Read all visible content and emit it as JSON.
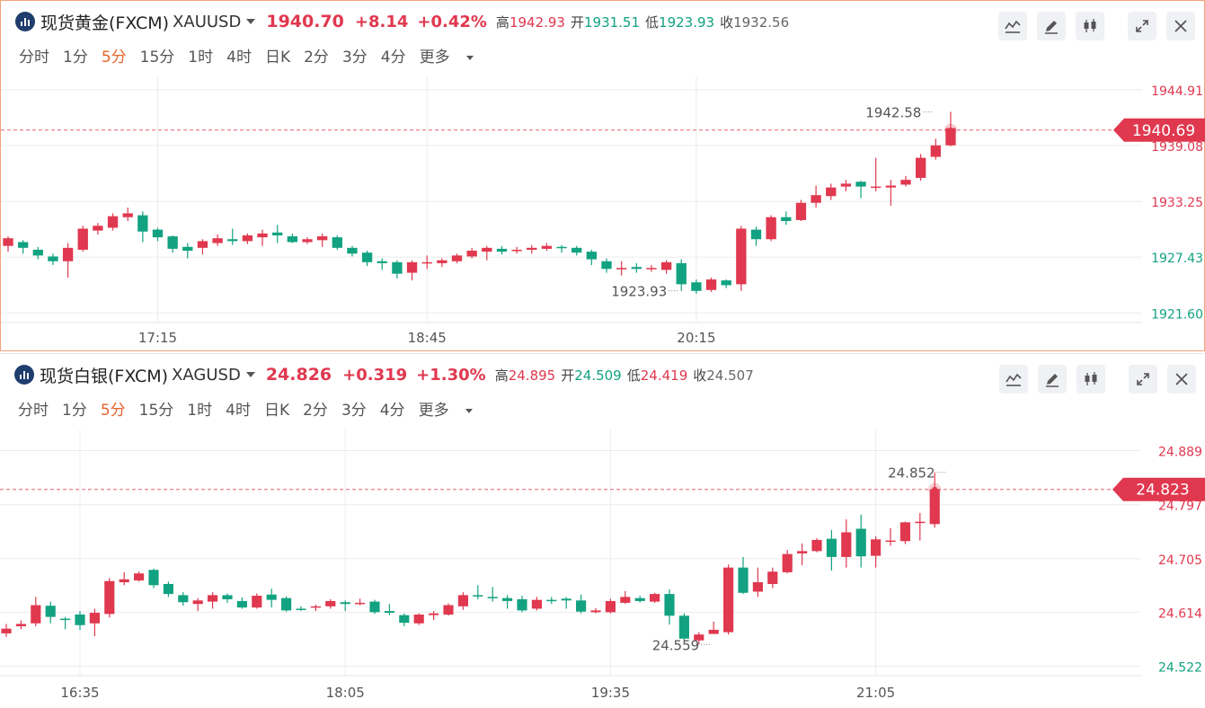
{
  "colors": {
    "up": "#e0384f",
    "down": "#12a281",
    "accent": "#e8622a",
    "grid": "#ececec"
  },
  "icons": [
    "line-style-icon",
    "pencil-icon",
    "candlestick-icon",
    "expand-icon",
    "close-icon"
  ],
  "periods": [
    "分时",
    "1分",
    "5分",
    "15分",
    "1时",
    "4时",
    "日K",
    "2分",
    "3分",
    "4分"
  ],
  "more_label": "更多",
  "active_period": "5分",
  "panels": [
    {
      "name": "现货黄金(FXCM)",
      "code": "XAUUSD",
      "price": "1940.70",
      "change": "+8.14",
      "change_pct": "+0.42%",
      "high_label": "高",
      "high": "1942.93",
      "open_label": "开",
      "open": "1931.51",
      "low_label": "低",
      "low": "1923.93",
      "close_label": "收",
      "close": "1932.56"
    },
    {
      "name": "现货白银(FXCM)",
      "code": "XAGUSD",
      "price": "24.826",
      "change": "+0.319",
      "change_pct": "+1.30%",
      "high_label": "高",
      "high": "24.895",
      "open_label": "开",
      "open": "24.509",
      "low_label": "低",
      "low": "24.419",
      "close_label": "收",
      "close": "24.507"
    }
  ],
  "chart_data": [
    {
      "type": "candlestick",
      "title": "现货黄金(FXCM) XAUUSD 5分",
      "interval": "5分",
      "x_ticks": [
        "17:15",
        "18:45",
        "20:15"
      ],
      "x_tick_index": [
        10,
        28,
        46
      ],
      "y_ticks": [
        1944.91,
        1939.08,
        1933.25,
        1927.43,
        1921.6
      ],
      "ylim": [
        1920.6,
        1946.3
      ],
      "last_price": "1940.69",
      "max_label": "1942.58",
      "min_label": "1923.93",
      "max_index": 62,
      "min_index": 45,
      "candles": [
        [
          1928.6,
          1929.4,
          1928.0,
          1929.6
        ],
        [
          1929.0,
          1928.4,
          1927.8,
          1929.2
        ],
        [
          1928.2,
          1927.6,
          1927.2,
          1928.5
        ],
        [
          1927.5,
          1927.0,
          1926.6,
          1927.8
        ],
        [
          1927.0,
          1928.4,
          1925.3,
          1928.9
        ],
        [
          1928.2,
          1930.4,
          1928.0,
          1930.7
        ],
        [
          1930.2,
          1930.7,
          1929.8,
          1931.0
        ],
        [
          1930.5,
          1931.7,
          1930.2,
          1932.0
        ],
        [
          1931.6,
          1932.0,
          1931.2,
          1932.6
        ],
        [
          1931.8,
          1930.1,
          1929.0,
          1932.2
        ],
        [
          1930.3,
          1929.5,
          1929.1,
          1930.5
        ],
        [
          1929.6,
          1928.3,
          1927.9,
          1929.7
        ],
        [
          1928.5,
          1928.1,
          1927.3,
          1928.9
        ],
        [
          1928.4,
          1929.1,
          1927.7,
          1929.3
        ],
        [
          1928.9,
          1929.4,
          1928.6,
          1929.8
        ],
        [
          1929.3,
          1929.1,
          1928.7,
          1930.4
        ],
        [
          1929.1,
          1929.7,
          1928.8,
          1929.9
        ],
        [
          1929.5,
          1929.9,
          1928.6,
          1930.3
        ],
        [
          1930.0,
          1929.7,
          1928.9,
          1930.8
        ],
        [
          1929.6,
          1929.0,
          1928.9,
          1929.9
        ],
        [
          1929.0,
          1929.3,
          1928.8,
          1929.5
        ],
        [
          1929.2,
          1929.6,
          1928.5,
          1929.9
        ],
        [
          1929.5,
          1928.4,
          1928.2,
          1929.7
        ],
        [
          1928.4,
          1927.8,
          1927.5,
          1928.6
        ],
        [
          1927.9,
          1926.9,
          1926.5,
          1928.1
        ],
        [
          1927.0,
          1926.8,
          1926.1,
          1927.3
        ],
        [
          1926.9,
          1925.7,
          1925.2,
          1927.1
        ],
        [
          1925.8,
          1926.9,
          1925.0,
          1927.1
        ],
        [
          1926.8,
          1926.9,
          1926.2,
          1927.6
        ],
        [
          1926.8,
          1927.1,
          1926.4,
          1927.3
        ],
        [
          1927.0,
          1927.6,
          1926.8,
          1927.8
        ],
        [
          1927.5,
          1928.1,
          1927.3,
          1928.4
        ],
        [
          1928.0,
          1928.4,
          1927.1,
          1928.6
        ],
        [
          1928.3,
          1928.0,
          1927.7,
          1928.6
        ],
        [
          1928.1,
          1928.2,
          1927.8,
          1928.5
        ],
        [
          1928.2,
          1928.4,
          1927.8,
          1928.7
        ],
        [
          1928.3,
          1928.6,
          1928.1,
          1928.9
        ],
        [
          1928.5,
          1928.4,
          1927.9,
          1928.7
        ],
        [
          1928.4,
          1927.9,
          1927.6,
          1928.6
        ],
        [
          1928.0,
          1927.2,
          1926.6,
          1928.2
        ],
        [
          1927.0,
          1926.2,
          1925.8,
          1927.3
        ],
        [
          1926.3,
          1926.3,
          1925.5,
          1927.0
        ],
        [
          1926.4,
          1926.2,
          1925.8,
          1926.8
        ],
        [
          1926.2,
          1926.3,
          1925.9,
          1926.6
        ],
        [
          1926.1,
          1926.9,
          1925.7,
          1927.1
        ],
        [
          1926.8,
          1924.6,
          1923.9,
          1927.2
        ],
        [
          1924.8,
          1923.9,
          1923.6,
          1925.1
        ],
        [
          1924.0,
          1925.1,
          1923.8,
          1925.3
        ],
        [
          1925.0,
          1924.5,
          1924.2,
          1925.1
        ],
        [
          1924.6,
          1930.4,
          1923.9,
          1930.7
        ],
        [
          1930.3,
          1929.3,
          1928.6,
          1930.6
        ],
        [
          1929.3,
          1931.6,
          1929.1,
          1931.8
        ],
        [
          1931.6,
          1931.2,
          1930.8,
          1932.2
        ],
        [
          1931.3,
          1933.1,
          1931.2,
          1933.4
        ],
        [
          1933.1,
          1933.9,
          1932.6,
          1934.9
        ],
        [
          1933.8,
          1934.7,
          1933.4,
          1935.1
        ],
        [
          1934.8,
          1935.1,
          1934.3,
          1935.5
        ],
        [
          1935.3,
          1934.8,
          1933.6,
          1935.4
        ],
        [
          1934.8,
          1934.8,
          1934.3,
          1937.8
        ],
        [
          1934.7,
          1934.9,
          1932.8,
          1935.5
        ],
        [
          1935.0,
          1935.5,
          1934.8,
          1935.9
        ],
        [
          1935.7,
          1937.8,
          1935.4,
          1938.2
        ],
        [
          1937.9,
          1939.1,
          1937.6,
          1939.8
        ],
        [
          1939.1,
          1940.9,
          1939.0,
          1942.6
        ]
      ]
    },
    {
      "type": "candlestick",
      "title": "现货白银(FXCM) XAGUSD 5分",
      "interval": "5分",
      "x_ticks": [
        "16:35",
        "18:05",
        "19:35",
        "21:05"
      ],
      "x_tick_index": [
        5,
        23,
        41,
        59
      ],
      "y_ticks": [
        24.889,
        24.797,
        24.705,
        24.614,
        24.522
      ],
      "ylim": [
        24.506,
        24.925
      ],
      "last_price": "24.823",
      "max_label": "24.852",
      "min_label": "24.559",
      "max_index": 64,
      "min_index": 48,
      "candles": [
        [
          24.578,
          24.586,
          24.572,
          24.594
        ],
        [
          24.59,
          24.594,
          24.585,
          24.6
        ],
        [
          24.595,
          24.626,
          24.59,
          24.64
        ],
        [
          24.625,
          24.606,
          24.595,
          24.632
        ],
        [
          24.603,
          24.602,
          24.585,
          24.606
        ],
        [
          24.61,
          24.592,
          24.584,
          24.616
        ],
        [
          24.595,
          24.613,
          24.573,
          24.62
        ],
        [
          24.611,
          24.667,
          24.605,
          24.672
        ],
        [
          24.665,
          24.67,
          24.66,
          24.682
        ],
        [
          24.668,
          24.68,
          24.666,
          24.683
        ],
        [
          24.686,
          24.66,
          24.655,
          24.688
        ],
        [
          24.662,
          24.645,
          24.64,
          24.666
        ],
        [
          24.643,
          24.631,
          24.625,
          24.648
        ],
        [
          24.628,
          24.634,
          24.616,
          24.638
        ],
        [
          24.632,
          24.643,
          24.62,
          24.648
        ],
        [
          24.643,
          24.636,
          24.63,
          24.646
        ],
        [
          24.633,
          24.622,
          24.62,
          24.639
        ],
        [
          24.622,
          24.642,
          24.62,
          24.646
        ],
        [
          24.644,
          24.635,
          24.622,
          24.654
        ],
        [
          24.638,
          24.617,
          24.615,
          24.641
        ],
        [
          24.62,
          24.619,
          24.616,
          24.624
        ],
        [
          24.622,
          24.624,
          24.616,
          24.627
        ],
        [
          24.624,
          24.633,
          24.62,
          24.636
        ],
        [
          24.631,
          24.628,
          24.616,
          24.634
        ],
        [
          24.628,
          24.63,
          24.626,
          24.637
        ],
        [
          24.632,
          24.614,
          24.611,
          24.635
        ],
        [
          24.616,
          24.613,
          24.609,
          24.628
        ],
        [
          24.609,
          24.596,
          24.59,
          24.612
        ],
        [
          24.595,
          24.61,
          24.592,
          24.612
        ],
        [
          24.609,
          24.612,
          24.601,
          24.616
        ],
        [
          24.61,
          24.626,
          24.608,
          24.629
        ],
        [
          24.624,
          24.643,
          24.618,
          24.648
        ],
        [
          24.643,
          24.642,
          24.636,
          24.66
        ],
        [
          24.64,
          24.639,
          24.632,
          24.657
        ],
        [
          24.638,
          24.633,
          24.62,
          24.643
        ],
        [
          24.636,
          24.617,
          24.614,
          24.642
        ],
        [
          24.62,
          24.635,
          24.617,
          24.64
        ],
        [
          24.635,
          24.634,
          24.628,
          24.64
        ],
        [
          24.637,
          24.634,
          24.62,
          24.64
        ],
        [
          24.634,
          24.615,
          24.612,
          24.644
        ],
        [
          24.614,
          24.617,
          24.612,
          24.621
        ],
        [
          24.614,
          24.633,
          24.612,
          24.637
        ],
        [
          24.63,
          24.64,
          24.628,
          24.65
        ],
        [
          24.638,
          24.633,
          24.63,
          24.642
        ],
        [
          24.632,
          24.645,
          24.63,
          24.647
        ],
        [
          24.645,
          24.608,
          24.593,
          24.653
        ],
        [
          24.608,
          24.569,
          24.565,
          24.612
        ],
        [
          24.566,
          24.576,
          24.559,
          24.58
        ],
        [
          24.577,
          24.584,
          24.577,
          24.598
        ],
        [
          24.58,
          24.69,
          24.576,
          24.695
        ],
        [
          24.69,
          24.647,
          24.645,
          24.708
        ],
        [
          24.649,
          24.665,
          24.64,
          24.69
        ],
        [
          24.662,
          24.683,
          24.655,
          24.69
        ],
        [
          24.682,
          24.713,
          24.68,
          24.72
        ],
        [
          24.714,
          24.718,
          24.694,
          24.731
        ],
        [
          24.718,
          24.737,
          24.716,
          24.74
        ],
        [
          24.739,
          24.708,
          24.685,
          24.754
        ],
        [
          24.708,
          24.75,
          24.69,
          24.772
        ],
        [
          24.756,
          24.709,
          24.69,
          24.78
        ],
        [
          24.71,
          24.738,
          24.69,
          24.743
        ],
        [
          24.735,
          24.736,
          24.727,
          24.757
        ],
        [
          24.735,
          24.767,
          24.73,
          24.768
        ],
        [
          24.767,
          24.768,
          24.736,
          24.783
        ],
        [
          24.764,
          24.823,
          24.758,
          24.852
        ]
      ]
    }
  ]
}
